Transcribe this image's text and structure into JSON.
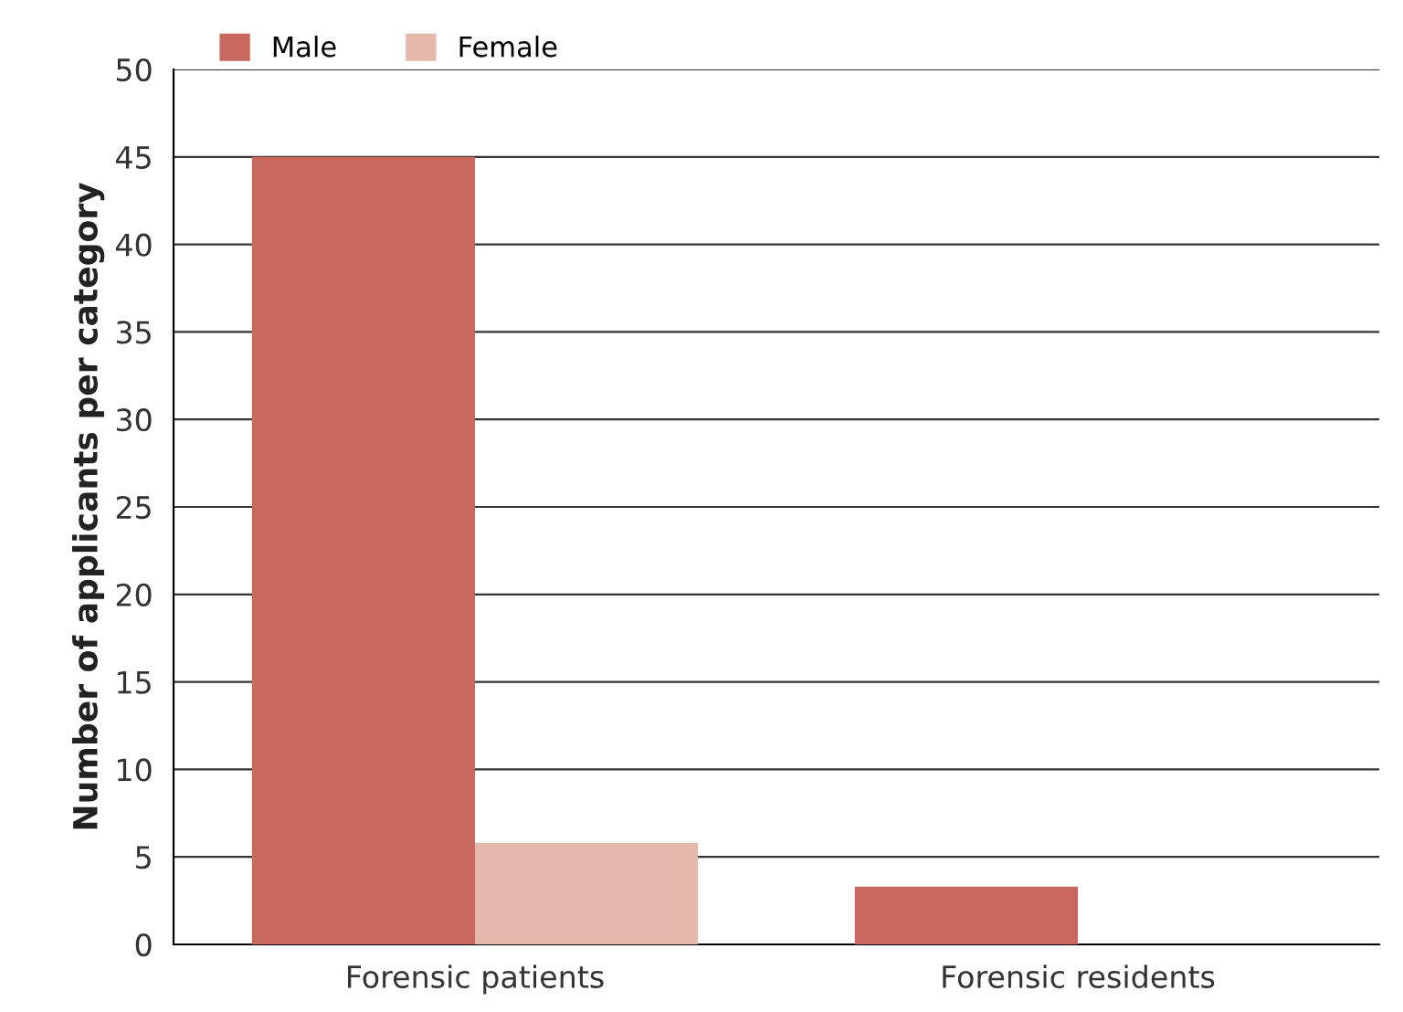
{
  "chart_data": {
    "type": "bar",
    "ylabel": "Number of applicants per category",
    "categories": [
      "Forensic patients",
      "Forensic residents"
    ],
    "series": [
      {
        "name": "Male",
        "color": "#c8675d",
        "values": [
          45,
          3.3
        ]
      },
      {
        "name": "Female",
        "color": "#e6b7ab",
        "values": [
          5.8,
          0
        ]
      }
    ],
    "ylim": [
      0,
      50
    ],
    "yticks": [
      0,
      5,
      10,
      15,
      20,
      25,
      30,
      35,
      40,
      45,
      50
    ],
    "grid": "y",
    "legend": "top left"
  }
}
